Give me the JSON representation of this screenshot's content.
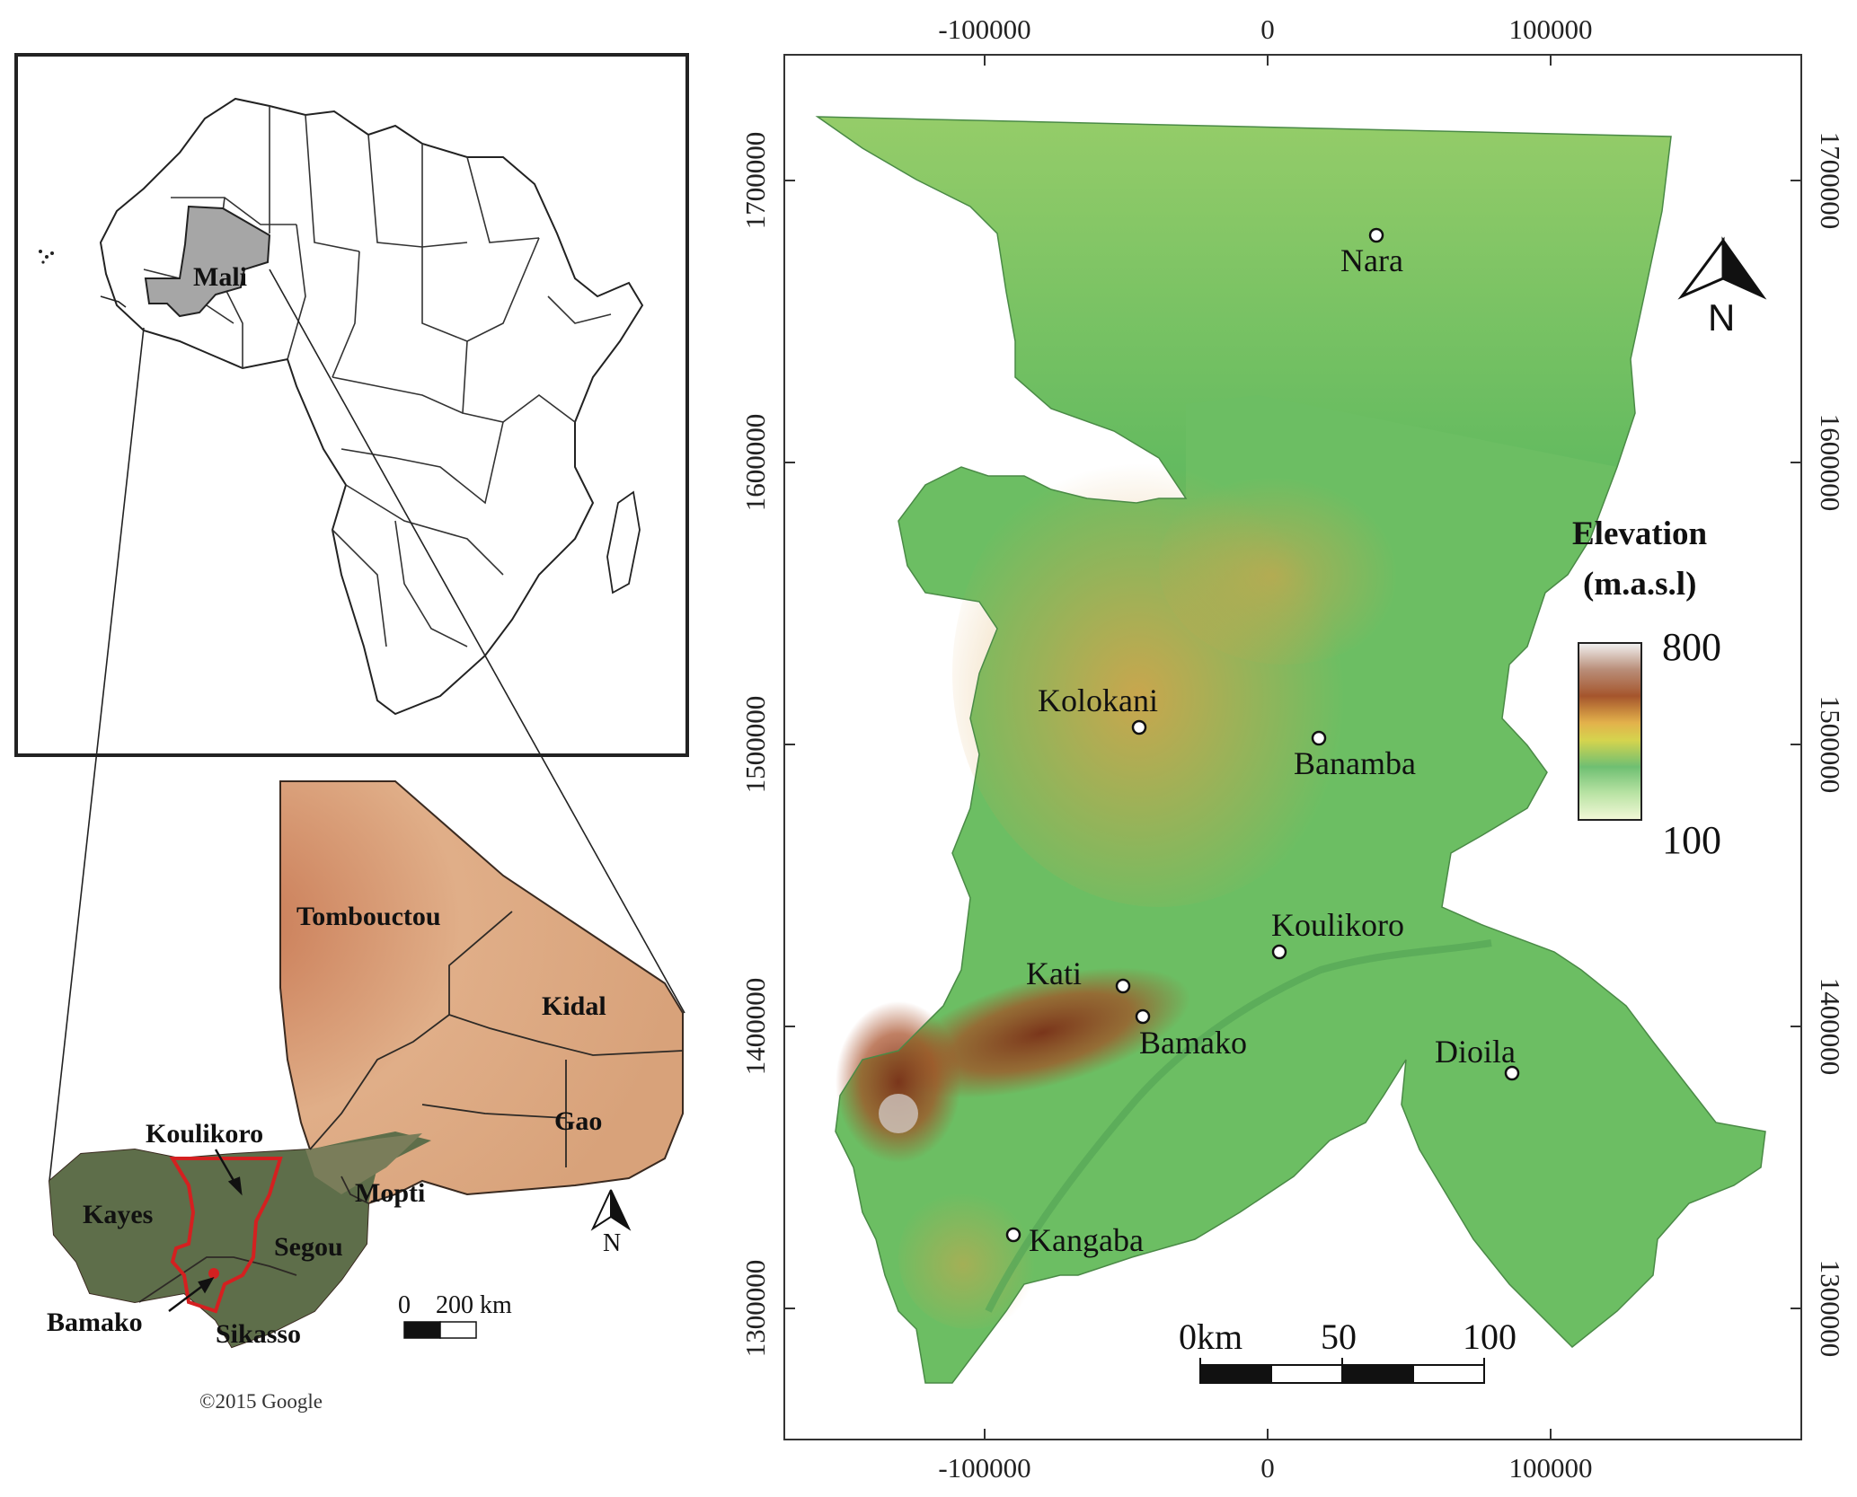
{
  "inset_africa": {
    "highlight_label": "Mali"
  },
  "inset_mali": {
    "regions": [
      {
        "name": "Tombouctou"
      },
      {
        "name": "Kidal"
      },
      {
        "name": "Gao"
      },
      {
        "name": "Koulikoro"
      },
      {
        "name": "Mopti"
      },
      {
        "name": "Kayes"
      },
      {
        "name": "Segou"
      },
      {
        "name": "Sikasso"
      },
      {
        "name": "Bamako"
      }
    ],
    "north_label": "N",
    "scale": {
      "start": "0",
      "end": "200 km"
    },
    "credit": "©2015 Google",
    "study_area_color": "#d42020"
  },
  "main_map": {
    "x_ticks": [
      "-100000",
      "0",
      "100000"
    ],
    "y_ticks": [
      "1700000",
      "1600000",
      "1500000",
      "1400000",
      "1300000"
    ],
    "towns": [
      {
        "name": "Nara"
      },
      {
        "name": "Kolokani"
      },
      {
        "name": "Banamba"
      },
      {
        "name": "Koulikoro"
      },
      {
        "name": "Kati"
      },
      {
        "name": "Bamako"
      },
      {
        "name": "Dioila"
      },
      {
        "name": "Kangaba"
      }
    ],
    "north_label": "N",
    "legend": {
      "title_line1": "Elevation",
      "title_line2": "(m.a.s.l)",
      "max": "800",
      "min": "100"
    },
    "scale": {
      "labels": [
        "0km",
        "50",
        "100"
      ]
    }
  },
  "colors": {
    "mali_fill": "#a6a6a6",
    "satellite_desert": "#d9a27a",
    "satellite_green": "#5e6e4a",
    "elevation_low": "#6fc46a",
    "elevation_mid": "#d9b25a",
    "elevation_high": "#8a3a1e"
  }
}
